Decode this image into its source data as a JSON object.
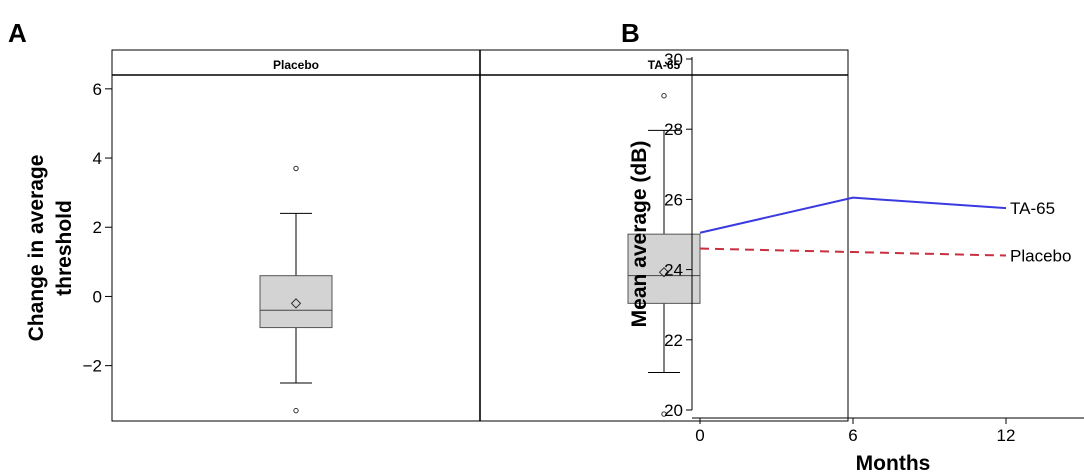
{
  "chart_data": [
    {
      "panel": "A",
      "type": "box",
      "ylabel": [
        "Change in average",
        "threshold"
      ],
      "ylim": [
        -3.6,
        6.4
      ],
      "yticks": [
        -2,
        0,
        2,
        4,
        6
      ],
      "ytick_labels": [
        "−2",
        "0",
        "2",
        "4",
        "6"
      ],
      "groups": [
        {
          "name": "Placebo",
          "whisker_low": -2.5,
          "q1": -0.9,
          "median": -0.4,
          "q3": 0.6,
          "whisker_high": 2.4,
          "mean": -0.2,
          "outliers": [
            3.7,
            -3.3
          ]
        },
        {
          "name": "TA-65",
          "whisker_low": -2.2,
          "q1": -0.2,
          "median": 0.6,
          "q3": 1.8,
          "whisker_high": 4.8,
          "mean": 0.7,
          "outliers": [
            5.8,
            -3.4
          ]
        }
      ],
      "colors": {
        "box_fill": "#d3d3d3",
        "line": "#000000"
      }
    },
    {
      "panel": "B",
      "type": "line",
      "xlabel": "Months",
      "ylabel": "Mean average (dB)",
      "xlim": [
        0,
        15
      ],
      "ylim": [
        20,
        30
      ],
      "xticks": [
        0,
        6,
        12
      ],
      "yticks": [
        20,
        22,
        24,
        26,
        28,
        30
      ],
      "series": [
        {
          "name": "TA-65",
          "x": [
            0,
            6,
            12
          ],
          "y": [
            25.05,
            26.05,
            25.75
          ],
          "color": "#3a3ae0",
          "dash": "solid"
        },
        {
          "name": "Placebo",
          "x": [
            0,
            6,
            12
          ],
          "y": [
            24.6,
            24.5,
            24.4
          ],
          "color": "#c83040",
          "dash": "dashed"
        }
      ]
    }
  ]
}
